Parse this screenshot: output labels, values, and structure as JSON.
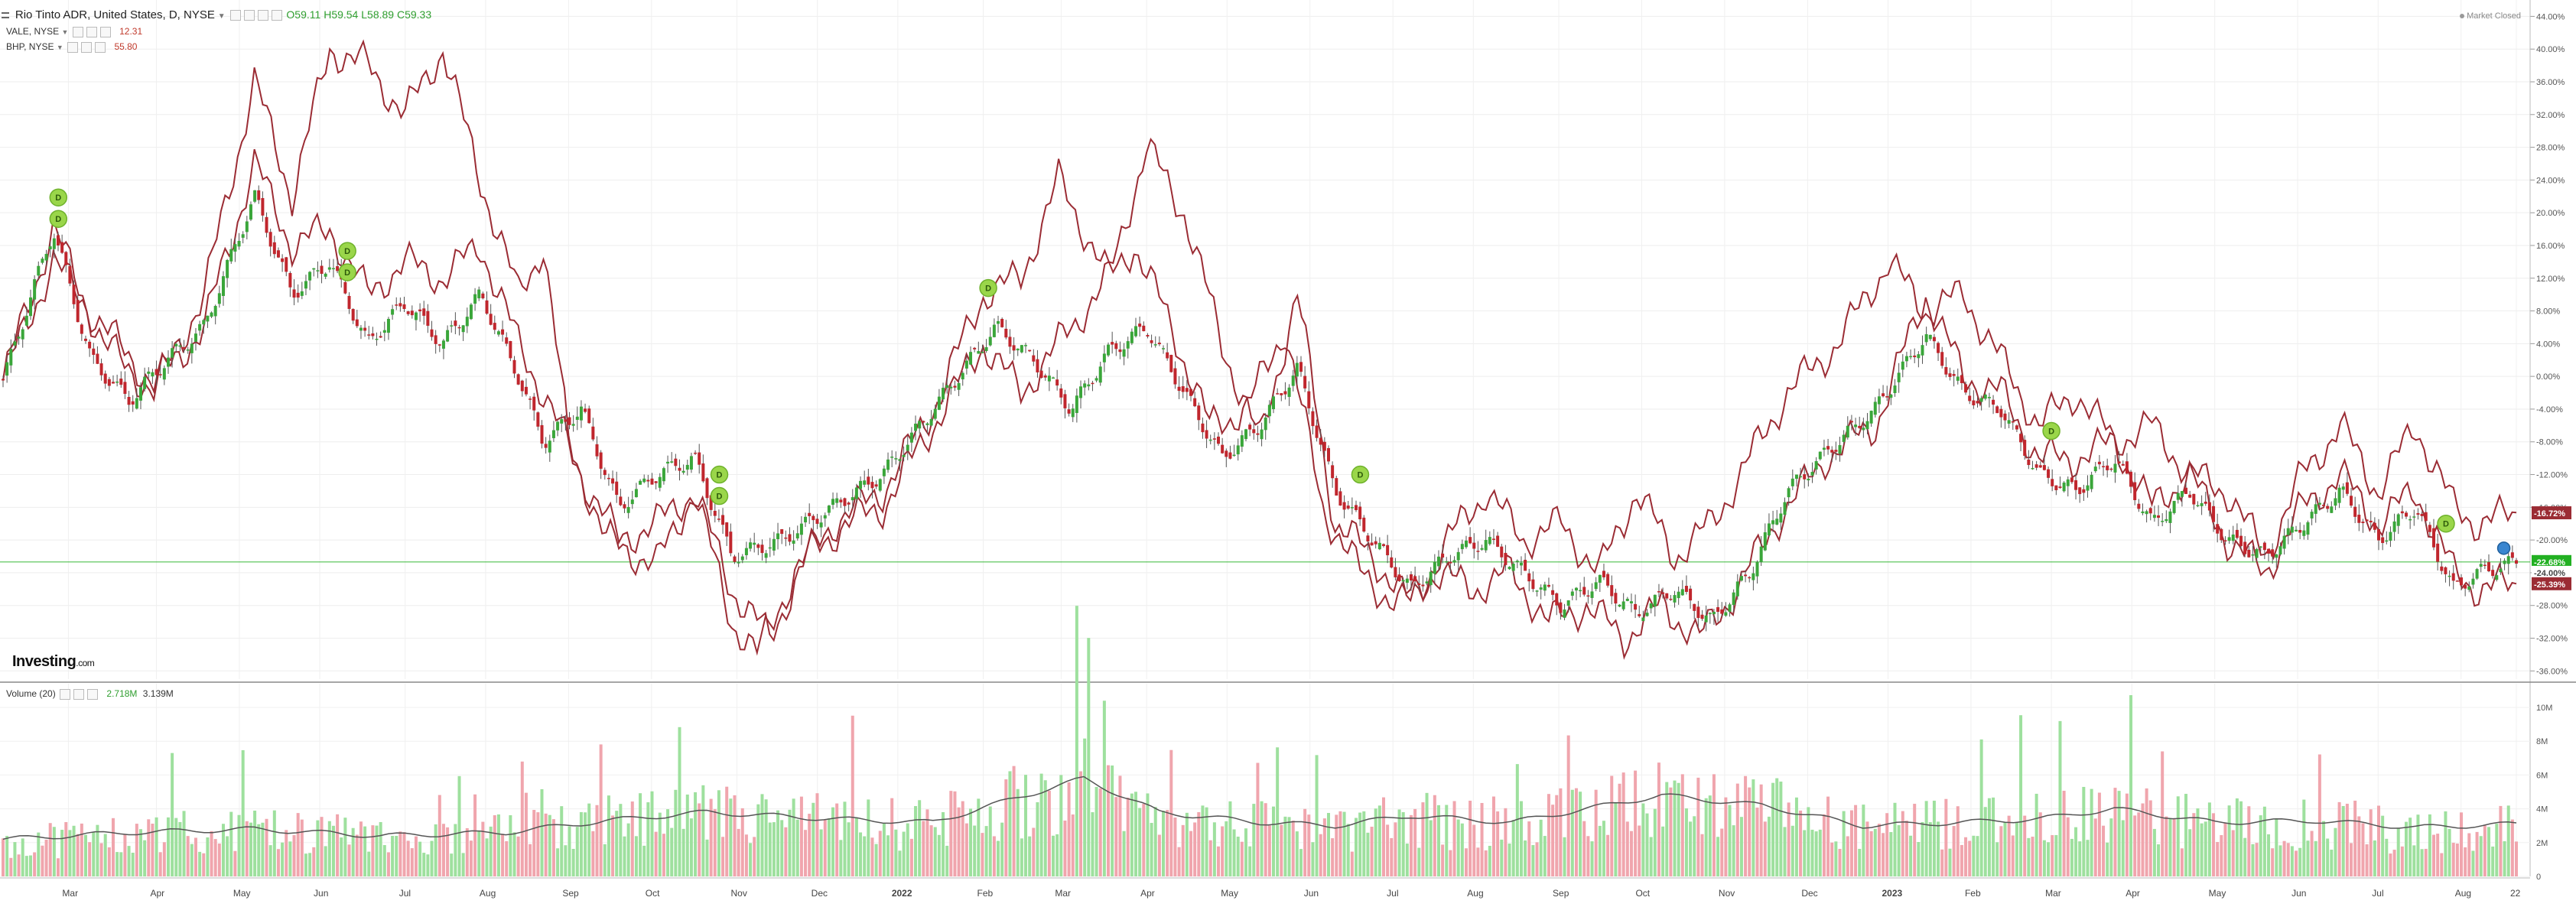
{
  "header": {
    "symbol_title": "Rio Tinto ADR, United States, D, NYSE",
    "ohlc": {
      "open": "O59.11",
      "high": "H59.54",
      "low": "L58.89",
      "close": "C59.33"
    },
    "market_status": "Market Closed",
    "compare": [
      {
        "label": "VALE, NYSE",
        "value": "12.31",
        "color": "#c0392b"
      },
      {
        "label": "BHP, NYSE",
        "value": "55.80",
        "color": "#c0392b"
      }
    ],
    "volume_label": "Volume (20)",
    "volume_values": [
      "2.718M",
      "3.139M"
    ],
    "brand": "Investing",
    "brand_suffix": ".com"
  },
  "colors": {
    "up": "#3aa63a",
    "down": "#c0262d",
    "compare_line": "#9b2c34",
    "vol_up": "#9ee09e",
    "vol_down": "#f0a5ad",
    "hline": "#22b022"
  },
  "chart_data": {
    "type": "candlestick-with-compare-lines",
    "yaxis_ticks": [
      "44.00%",
      "40.00%",
      "36.00%",
      "32.00%",
      "28.00%",
      "24.00%",
      "20.00%",
      "16.00%",
      "12.00%",
      "8.00%",
      "4.00%",
      "0.00%",
      "-4.00%",
      "-8.00%",
      "-12.00%",
      "-16.00%",
      "-20.00%",
      "-24.00%",
      "-28.00%",
      "-32.00%",
      "-36.00%"
    ],
    "ylim": [
      -37,
      46
    ],
    "xaxis_ticks": [
      {
        "label": "Mar",
        "t": 0.026
      },
      {
        "label": "Apr",
        "t": 0.061
      },
      {
        "label": "May",
        "t": 0.094
      },
      {
        "label": "Jun",
        "t": 0.126
      },
      {
        "label": "Jul",
        "t": 0.16
      },
      {
        "label": "Aug",
        "t": 0.192
      },
      {
        "label": "Sep",
        "t": 0.225
      },
      {
        "label": "Oct",
        "t": 0.258
      },
      {
        "label": "Nov",
        "t": 0.292
      },
      {
        "label": "Dec",
        "t": 0.324
      },
      {
        "label": "2022",
        "t": 0.356
      },
      {
        "label": "Feb",
        "t": 0.39
      },
      {
        "label": "Mar",
        "t": 0.421
      },
      {
        "label": "Apr",
        "t": 0.455
      },
      {
        "label": "May",
        "t": 0.487
      },
      {
        "label": "Jun",
        "t": 0.52
      },
      {
        "label": "Jul",
        "t": 0.553
      },
      {
        "label": "Aug",
        "t": 0.585
      },
      {
        "label": "Sep",
        "t": 0.619
      },
      {
        "label": "Oct",
        "t": 0.652
      },
      {
        "label": "Nov",
        "t": 0.685
      },
      {
        "label": "Dec",
        "t": 0.718
      },
      {
        "label": "2023",
        "t": 0.75
      },
      {
        "label": "Feb",
        "t": 0.783
      },
      {
        "label": "Mar",
        "t": 0.815
      },
      {
        "label": "Apr",
        "t": 0.847
      },
      {
        "label": "May",
        "t": 0.88
      },
      {
        "label": "Jun",
        "t": 0.913
      },
      {
        "label": "Jul",
        "t": 0.945
      },
      {
        "label": "Aug",
        "t": 0.978
      },
      {
        "label": "22",
        "t": 1.0
      }
    ],
    "rio_close_keypoints": [
      [
        0,
        -0.5
      ],
      [
        0.02,
        18
      ],
      [
        0.035,
        2
      ],
      [
        0.05,
        -3
      ],
      [
        0.065,
        2
      ],
      [
        0.08,
        6
      ],
      [
        0.1,
        22
      ],
      [
        0.115,
        10
      ],
      [
        0.13,
        14
      ],
      [
        0.145,
        4
      ],
      [
        0.16,
        9
      ],
      [
        0.175,
        4
      ],
      [
        0.19,
        10
      ],
      [
        0.205,
        0
      ],
      [
        0.215,
        -8
      ],
      [
        0.23,
        -4
      ],
      [
        0.245,
        -16
      ],
      [
        0.26,
        -12
      ],
      [
        0.275,
        -10
      ],
      [
        0.29,
        -22
      ],
      [
        0.31,
        -20
      ],
      [
        0.33,
        -16
      ],
      [
        0.35,
        -12
      ],
      [
        0.375,
        -2
      ],
      [
        0.395,
        6
      ],
      [
        0.41,
        2
      ],
      [
        0.425,
        -4
      ],
      [
        0.44,
        3
      ],
      [
        0.455,
        6
      ],
      [
        0.47,
        -2
      ],
      [
        0.485,
        -10
      ],
      [
        0.5,
        -6
      ],
      [
        0.515,
        1
      ],
      [
        0.53,
        -14
      ],
      [
        0.545,
        -20
      ],
      [
        0.56,
        -26
      ],
      [
        0.575,
        -22
      ],
      [
        0.59,
        -20
      ],
      [
        0.605,
        -24
      ],
      [
        0.62,
        -28
      ],
      [
        0.635,
        -25
      ],
      [
        0.65,
        -29
      ],
      [
        0.665,
        -26
      ],
      [
        0.68,
        -30
      ],
      [
        0.695,
        -24
      ],
      [
        0.71,
        -14
      ],
      [
        0.73,
        -8
      ],
      [
        0.745,
        -4
      ],
      [
        0.765,
        5
      ],
      [
        0.78,
        -2
      ],
      [
        0.795,
        -4
      ],
      [
        0.81,
        -12
      ],
      [
        0.825,
        -14
      ],
      [
        0.84,
        -10
      ],
      [
        0.855,
        -18
      ],
      [
        0.87,
        -14
      ],
      [
        0.885,
        -20
      ],
      [
        0.9,
        -22
      ],
      [
        0.915,
        -18
      ],
      [
        0.93,
        -14
      ],
      [
        0.945,
        -20
      ],
      [
        0.96,
        -16
      ],
      [
        0.975,
        -26
      ],
      [
        0.985,
        -24
      ],
      [
        1.0,
        -22.7
      ]
    ],
    "vale_keypoints": [
      [
        0,
        -0.5
      ],
      [
        0.02,
        18
      ],
      [
        0.04,
        4
      ],
      [
        0.06,
        -2
      ],
      [
        0.08,
        10
      ],
      [
        0.1,
        36
      ],
      [
        0.115,
        22
      ],
      [
        0.13,
        40
      ],
      [
        0.145,
        38
      ],
      [
        0.16,
        32
      ],
      [
        0.175,
        40
      ],
      [
        0.19,
        24
      ],
      [
        0.205,
        10
      ],
      [
        0.215,
        16
      ],
      [
        0.225,
        -8
      ],
      [
        0.24,
        -20
      ],
      [
        0.26,
        -23
      ],
      [
        0.275,
        -14
      ],
      [
        0.29,
        -30
      ],
      [
        0.3,
        -34
      ],
      [
        0.315,
        -24
      ],
      [
        0.33,
        -18
      ],
      [
        0.35,
        -14
      ],
      [
        0.37,
        -4
      ],
      [
        0.39,
        10
      ],
      [
        0.405,
        12
      ],
      [
        0.42,
        24
      ],
      [
        0.44,
        12
      ],
      [
        0.455,
        28
      ],
      [
        0.47,
        20
      ],
      [
        0.485,
        4
      ],
      [
        0.5,
        -8
      ],
      [
        0.515,
        10
      ],
      [
        0.53,
        -18
      ],
      [
        0.545,
        -22
      ],
      [
        0.56,
        -28
      ],
      [
        0.575,
        -20
      ],
      [
        0.59,
        -14
      ],
      [
        0.605,
        -20
      ],
      [
        0.62,
        -18
      ],
      [
        0.635,
        -24
      ],
      [
        0.65,
        -14
      ],
      [
        0.665,
        -22
      ],
      [
        0.68,
        -18
      ],
      [
        0.695,
        -10
      ],
      [
        0.71,
        -2
      ],
      [
        0.73,
        4
      ],
      [
        0.75,
        14
      ],
      [
        0.765,
        8
      ],
      [
        0.78,
        10
      ],
      [
        0.795,
        2
      ],
      [
        0.81,
        -6
      ],
      [
        0.825,
        -2
      ],
      [
        0.84,
        -8
      ],
      [
        0.855,
        -6
      ],
      [
        0.87,
        -12
      ],
      [
        0.885,
        -14
      ],
      [
        0.9,
        -22
      ],
      [
        0.915,
        -12
      ],
      [
        0.93,
        -6
      ],
      [
        0.945,
        -14
      ],
      [
        0.96,
        -6
      ],
      [
        0.975,
        -16
      ],
      [
        0.985,
        -18
      ],
      [
        1.0,
        -16.7
      ]
    ],
    "bhp_keypoints": [
      [
        0,
        -0.5
      ],
      [
        0.02,
        14
      ],
      [
        0.04,
        6
      ],
      [
        0.06,
        -1
      ],
      [
        0.08,
        6
      ],
      [
        0.1,
        26
      ],
      [
        0.115,
        16
      ],
      [
        0.13,
        18
      ],
      [
        0.145,
        10
      ],
      [
        0.16,
        14
      ],
      [
        0.175,
        12
      ],
      [
        0.19,
        16
      ],
      [
        0.205,
        4
      ],
      [
        0.215,
        -2
      ],
      [
        0.23,
        -12
      ],
      [
        0.245,
        -20
      ],
      [
        0.26,
        -18
      ],
      [
        0.275,
        -14
      ],
      [
        0.29,
        -26
      ],
      [
        0.305,
        -32
      ],
      [
        0.32,
        -22
      ],
      [
        0.335,
        -18
      ],
      [
        0.35,
        -16
      ],
      [
        0.37,
        -6
      ],
      [
        0.39,
        4
      ],
      [
        0.405,
        -2
      ],
      [
        0.42,
        4
      ],
      [
        0.435,
        10
      ],
      [
        0.45,
        16
      ],
      [
        0.465,
        6
      ],
      [
        0.48,
        -6
      ],
      [
        0.495,
        -4
      ],
      [
        0.51,
        6
      ],
      [
        0.525,
        -16
      ],
      [
        0.54,
        -24
      ],
      [
        0.555,
        -28
      ],
      [
        0.57,
        -24
      ],
      [
        0.585,
        -26
      ],
      [
        0.6,
        -24
      ],
      [
        0.615,
        -30
      ],
      [
        0.63,
        -28
      ],
      [
        0.645,
        -32
      ],
      [
        0.66,
        -28
      ],
      [
        0.675,
        -32
      ],
      [
        0.69,
        -26
      ],
      [
        0.705,
        -18
      ],
      [
        0.725,
        -10
      ],
      [
        0.745,
        -6
      ],
      [
        0.765,
        10
      ],
      [
        0.78,
        0
      ],
      [
        0.795,
        -2
      ],
      [
        0.81,
        -10
      ],
      [
        0.825,
        -10
      ],
      [
        0.84,
        -8
      ],
      [
        0.855,
        -16
      ],
      [
        0.87,
        -12
      ],
      [
        0.885,
        -20
      ],
      [
        0.9,
        -24
      ],
      [
        0.915,
        -16
      ],
      [
        0.93,
        -12
      ],
      [
        0.945,
        -18
      ],
      [
        0.96,
        -14
      ],
      [
        0.975,
        -24
      ],
      [
        0.985,
        -26
      ],
      [
        1.0,
        -25.4
      ]
    ],
    "last_value_labels": [
      {
        "value": "-16.72%",
        "y": -16.72,
        "color": "#9b2c34"
      },
      {
        "value": "-22.68%",
        "y": -22.68,
        "color": "#22b022"
      },
      {
        "value": "-24.00%",
        "y": -24.0,
        "color": "#ffffff"
      },
      {
        "value": "-25.39%",
        "y": -25.39,
        "color": "#9b2c34"
      }
    ],
    "horizontal_line_value": -22.68,
    "dividend_markers_t": [
      0.022,
      0.022,
      0.137,
      0.137,
      0.285,
      0.285,
      0.392,
      0.54,
      0.815,
      0.972
    ],
    "dividend_label": "D",
    "volume_axis_ticks": [
      "10M",
      "8M",
      "6M",
      "4M",
      "2M",
      "0"
    ],
    "volume_ylim": [
      0,
      10.5
    ],
    "volume_ma_keypoints": [
      [
        0,
        2.2
      ],
      [
        0.05,
        2.6
      ],
      [
        0.1,
        2.8
      ],
      [
        0.15,
        2.4
      ],
      [
        0.2,
        2.6
      ],
      [
        0.24,
        3.3
      ],
      [
        0.28,
        3.8
      ],
      [
        0.33,
        3.4
      ],
      [
        0.37,
        3.2
      ],
      [
        0.4,
        4.5
      ],
      [
        0.43,
        5.8
      ],
      [
        0.46,
        3.8
      ],
      [
        0.5,
        3.2
      ],
      [
        0.53,
        3.0
      ],
      [
        0.56,
        3.6
      ],
      [
        0.6,
        3.2
      ],
      [
        0.63,
        4.0
      ],
      [
        0.66,
        4.8
      ],
      [
        0.7,
        4.2
      ],
      [
        0.74,
        3.0
      ],
      [
        0.78,
        3.2
      ],
      [
        0.81,
        3.4
      ],
      [
        0.84,
        4.0
      ],
      [
        0.88,
        3.2
      ],
      [
        0.92,
        3.3
      ],
      [
        0.96,
        2.9
      ],
      [
        1.0,
        3.1
      ]
    ]
  }
}
